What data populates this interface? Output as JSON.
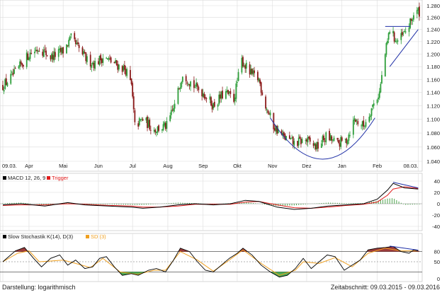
{
  "footer": {
    "left": "Darstellung: logarithmisch",
    "right": "Zeitabschnitt: 09.03.2015 - 09.03.2016"
  },
  "colors": {
    "up": "#2e9e3a",
    "down": "#8b1a1a",
    "macd_line": "#000000",
    "trigger_line": "#e11b1b",
    "stoch_k": "#000000",
    "stoch_d": "#f0a020",
    "trendline": "#1f2fa6",
    "grid": "#dcdcdc",
    "stoch_over": "#8b1a1a",
    "stoch_under": "#2e9e3a"
  },
  "chart_data": [
    {
      "type": "candlestick",
      "scale": "log",
      "grid": true,
      "ylim": [
        1.04,
        1.28
      ],
      "y_ticks": [
        "1.280",
        "1.260",
        "1.240",
        "1.220",
        "1.200",
        "1.180",
        "1.160",
        "1.140",
        "1.120",
        "1.100",
        "1.080",
        "1.060",
        "1.040"
      ],
      "x_ticks": [
        "09.03.",
        "Apr",
        "Mai",
        "Jun",
        "Jul",
        "Aug",
        "Sep",
        "Okt",
        "Nov",
        "Dez",
        "Jan",
        "Feb",
        "08.03."
      ],
      "x_tick_dates": [
        "2015-03-09",
        "2015-04-01",
        "2015-05-01",
        "2015-06-01",
        "2015-07-01",
        "2015-08-01",
        "2015-09-01",
        "2015-10-01",
        "2015-11-01",
        "2015-12-01",
        "2016-01-01",
        "2016-02-01",
        "2016-03-08"
      ],
      "start_date": "2015-03-09",
      "end_date": "2016-03-09",
      "close_path": [
        [
          "2015-03-09",
          1.15
        ],
        [
          "2015-03-20",
          1.17
        ],
        [
          "2015-04-01",
          1.2
        ],
        [
          "2015-04-10",
          1.21
        ],
        [
          "2015-04-20",
          1.195
        ],
        [
          "2015-05-01",
          1.205
        ],
        [
          "2015-05-08",
          1.225
        ],
        [
          "2015-05-14",
          1.21
        ],
        [
          "2015-05-22",
          1.19
        ],
        [
          "2015-05-29",
          1.185
        ],
        [
          "2015-06-05",
          1.195
        ],
        [
          "2015-06-15",
          1.185
        ],
        [
          "2015-06-25",
          1.175
        ],
        [
          "2015-06-30",
          1.15
        ],
        [
          "2015-07-03",
          1.09
        ],
        [
          "2015-07-10",
          1.1
        ],
        [
          "2015-07-20",
          1.085
        ],
        [
          "2015-07-31",
          1.09
        ],
        [
          "2015-08-07",
          1.12
        ],
        [
          "2015-08-14",
          1.17
        ],
        [
          "2015-08-24",
          1.15
        ],
        [
          "2015-09-01",
          1.14
        ],
        [
          "2015-09-10",
          1.12
        ],
        [
          "2015-09-20",
          1.14
        ],
        [
          "2015-09-28",
          1.13
        ],
        [
          "2015-10-05",
          1.19
        ],
        [
          "2015-10-12",
          1.17
        ],
        [
          "2015-10-20",
          1.16
        ],
        [
          "2015-10-26",
          1.12
        ],
        [
          "2015-11-02",
          1.09
        ],
        [
          "2015-11-10",
          1.075
        ],
        [
          "2015-11-20",
          1.065
        ],
        [
          "2015-11-30",
          1.07
        ],
        [
          "2015-12-10",
          1.06
        ],
        [
          "2015-12-18",
          1.075
        ],
        [
          "2015-12-28",
          1.065
        ],
        [
          "2016-01-05",
          1.07
        ],
        [
          "2016-01-12",
          1.1
        ],
        [
          "2016-01-20",
          1.09
        ],
        [
          "2016-01-28",
          1.12
        ],
        [
          "2016-02-03",
          1.14
        ],
        [
          "2016-02-08",
          1.2
        ],
        [
          "2016-02-12",
          1.24
        ],
        [
          "2016-02-18",
          1.22
        ],
        [
          "2016-02-24",
          1.23
        ],
        [
          "2016-03-01",
          1.25
        ],
        [
          "2016-03-04",
          1.265
        ],
        [
          "2016-03-08",
          1.27
        ]
      ],
      "annotations": [
        {
          "type": "rounding_bottom",
          "from": "2015-10-30",
          "to": "2016-01-30",
          "low": 1.043,
          "start": 1.102,
          "end": 1.102
        },
        {
          "type": "horizontal_line",
          "from": "2016-02-08",
          "to": "2016-03-01",
          "value": 1.245
        },
        {
          "type": "rising_trendline",
          "from": [
            "2016-02-12",
            1.18
          ],
          "to": [
            "2016-03-08",
            1.24
          ]
        }
      ]
    },
    {
      "type": "line",
      "title": "MACD 12, 26, 9",
      "legend": [
        "MACD 12, 26, 9",
        "Trigger"
      ],
      "y_ticks": [
        "40",
        "20",
        "0",
        "-20",
        "-40"
      ],
      "ylim": [
        -40,
        40
      ],
      "macd_path": [
        [
          "2015-03-09",
          -2
        ],
        [
          "2015-03-25",
          0
        ],
        [
          "2015-04-15",
          -4
        ],
        [
          "2015-05-05",
          2
        ],
        [
          "2015-05-20",
          -2
        ],
        [
          "2015-06-10",
          -4
        ],
        [
          "2015-06-30",
          -6
        ],
        [
          "2015-07-10",
          -8
        ],
        [
          "2015-07-25",
          -6
        ],
        [
          "2015-08-10",
          -2
        ],
        [
          "2015-08-25",
          0
        ],
        [
          "2015-09-10",
          -2
        ],
        [
          "2015-09-25",
          0
        ],
        [
          "2015-10-08",
          6
        ],
        [
          "2015-10-20",
          4
        ],
        [
          "2015-11-05",
          -6
        ],
        [
          "2015-11-20",
          -10
        ],
        [
          "2015-12-05",
          -8
        ],
        [
          "2015-12-20",
          -4
        ],
        [
          "2016-01-05",
          -2
        ],
        [
          "2016-01-20",
          0
        ],
        [
          "2016-02-01",
          8
        ],
        [
          "2016-02-10",
          24
        ],
        [
          "2016-02-15",
          36
        ],
        [
          "2016-02-25",
          28
        ],
        [
          "2016-03-08",
          26
        ]
      ],
      "trigger_path": [
        [
          "2015-03-09",
          -3
        ],
        [
          "2015-03-25",
          -2
        ],
        [
          "2015-04-15",
          -2
        ],
        [
          "2015-05-05",
          0
        ],
        [
          "2015-05-20",
          -1
        ],
        [
          "2015-06-10",
          -3
        ],
        [
          "2015-06-30",
          -4
        ],
        [
          "2015-07-10",
          -6
        ],
        [
          "2015-07-25",
          -6
        ],
        [
          "2015-08-10",
          -4
        ],
        [
          "2015-08-25",
          -1
        ],
        [
          "2015-09-10",
          -1
        ],
        [
          "2015-09-25",
          -1
        ],
        [
          "2015-10-08",
          3
        ],
        [
          "2015-10-20",
          4
        ],
        [
          "2015-11-05",
          -2
        ],
        [
          "2015-11-20",
          -7
        ],
        [
          "2015-12-05",
          -8
        ],
        [
          "2015-12-20",
          -6
        ],
        [
          "2016-01-05",
          -3
        ],
        [
          "2016-01-20",
          -1
        ],
        [
          "2016-02-01",
          3
        ],
        [
          "2016-02-10",
          15
        ],
        [
          "2016-02-15",
          26
        ],
        [
          "2016-02-25",
          30
        ],
        [
          "2016-03-08",
          27
        ]
      ],
      "annotations": [
        {
          "type": "trendline",
          "from": [
            "2016-02-15",
            38
          ],
          "to": [
            "2016-03-08",
            28
          ]
        }
      ]
    },
    {
      "type": "line",
      "title": "Slow Stochastik K(14), D(3)",
      "legend": [
        "Slow Stochastik K(14), D(3)",
        "SD (3)"
      ],
      "y_ticks": [
        "80",
        "50",
        "0"
      ],
      "ylim": [
        0,
        100
      ],
      "levels": [
        80,
        50,
        20
      ],
      "k_path": [
        [
          "2015-03-09",
          50
        ],
        [
          "2015-03-20",
          82
        ],
        [
          "2015-03-28",
          92
        ],
        [
          "2015-04-05",
          60
        ],
        [
          "2015-04-12",
          35
        ],
        [
          "2015-04-20",
          60
        ],
        [
          "2015-04-28",
          70
        ],
        [
          "2015-05-05",
          40
        ],
        [
          "2015-05-12",
          55
        ],
        [
          "2015-05-20",
          30
        ],
        [
          "2015-05-27",
          35
        ],
        [
          "2015-06-02",
          60
        ],
        [
          "2015-06-08",
          65
        ],
        [
          "2015-06-15",
          35
        ],
        [
          "2015-06-22",
          10
        ],
        [
          "2015-06-30",
          15
        ],
        [
          "2015-07-06",
          10
        ],
        [
          "2015-07-15",
          25
        ],
        [
          "2015-07-22",
          30
        ],
        [
          "2015-07-30",
          20
        ],
        [
          "2015-08-06",
          55
        ],
        [
          "2015-08-12",
          90
        ],
        [
          "2015-08-20",
          80
        ],
        [
          "2015-08-27",
          50
        ],
        [
          "2015-09-03",
          25
        ],
        [
          "2015-09-10",
          20
        ],
        [
          "2015-09-17",
          40
        ],
        [
          "2015-09-24",
          60
        ],
        [
          "2015-10-01",
          75
        ],
        [
          "2015-10-06",
          90
        ],
        [
          "2015-10-14",
          70
        ],
        [
          "2015-10-22",
          40
        ],
        [
          "2015-10-30",
          20
        ],
        [
          "2015-11-07",
          5
        ],
        [
          "2015-11-14",
          10
        ],
        [
          "2015-11-21",
          30
        ],
        [
          "2015-11-28",
          60
        ],
        [
          "2015-12-05",
          30
        ],
        [
          "2015-12-12",
          50
        ],
        [
          "2015-12-19",
          70
        ],
        [
          "2015-12-26",
          65
        ],
        [
          "2016-01-03",
          25
        ],
        [
          "2016-01-10",
          40
        ],
        [
          "2016-01-17",
          55
        ],
        [
          "2016-01-24",
          85
        ],
        [
          "2016-02-01",
          90
        ],
        [
          "2016-02-08",
          92
        ],
        [
          "2016-02-15",
          95
        ],
        [
          "2016-02-22",
          80
        ],
        [
          "2016-02-29",
          75
        ],
        [
          "2016-03-04",
          85
        ],
        [
          "2016-03-08",
          82
        ]
      ],
      "d_path": [
        [
          "2015-03-09",
          50
        ],
        [
          "2015-03-22",
          75
        ],
        [
          "2015-04-01",
          82
        ],
        [
          "2015-04-10",
          50
        ],
        [
          "2015-04-20",
          52
        ],
        [
          "2015-05-01",
          55
        ],
        [
          "2015-05-12",
          45
        ],
        [
          "2015-05-25",
          33
        ],
        [
          "2015-06-05",
          60
        ],
        [
          "2015-06-20",
          20
        ],
        [
          "2015-07-05",
          13
        ],
        [
          "2015-07-20",
          25
        ],
        [
          "2015-07-30",
          25
        ],
        [
          "2015-08-12",
          80
        ],
        [
          "2015-08-27",
          55
        ],
        [
          "2015-09-10",
          22
        ],
        [
          "2015-09-24",
          55
        ],
        [
          "2015-10-06",
          85
        ],
        [
          "2015-10-22",
          45
        ],
        [
          "2015-11-07",
          10
        ],
        [
          "2015-11-21",
          25
        ],
        [
          "2015-11-28",
          50
        ],
        [
          "2015-12-12",
          45
        ],
        [
          "2015-12-26",
          62
        ],
        [
          "2016-01-10",
          35
        ],
        [
          "2016-01-24",
          75
        ],
        [
          "2016-02-08",
          90
        ],
        [
          "2016-02-22",
          82
        ],
        [
          "2016-03-08",
          82
        ]
      ],
      "annotations": [
        {
          "type": "trendline",
          "from": [
            "2016-02-12",
            96
          ],
          "to": [
            "2016-03-08",
            84
          ]
        }
      ]
    }
  ]
}
